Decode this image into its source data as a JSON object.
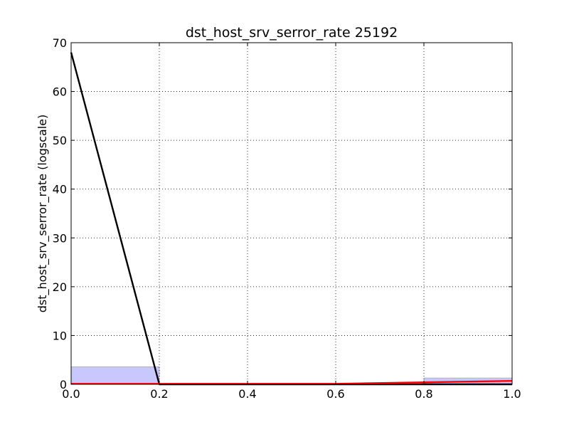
{
  "chart_data": {
    "type": "line",
    "title": "dst_host_srv_serror_rate 25192",
    "xlabel": "",
    "ylabel": "dst_host_srv_serror_rate (logscale)",
    "xlim": [
      0.0,
      1.0
    ],
    "ylim": [
      0,
      70
    ],
    "grid": true,
    "x_ticks": [
      0.0,
      0.2,
      0.4,
      0.6,
      0.8,
      1.0
    ],
    "x_tick_labels": [
      "0.0",
      "0.2",
      "0.4",
      "0.6",
      "0.8",
      "1.0"
    ],
    "y_ticks": [
      0,
      10,
      20,
      30,
      40,
      50,
      60,
      70
    ],
    "y_tick_labels": [
      "0",
      "10",
      "20",
      "30",
      "40",
      "50",
      "60",
      "70"
    ],
    "histogram": {
      "bins": [
        {
          "x0": 0.0,
          "x1": 0.2,
          "value": 3.6
        },
        {
          "x0": 0.2,
          "x1": 0.4,
          "value": 0.1
        },
        {
          "x0": 0.4,
          "x1": 0.6,
          "value": 0.1
        },
        {
          "x0": 0.6,
          "x1": 0.8,
          "value": 0.1
        },
        {
          "x0": 0.8,
          "x1": 1.0,
          "value": 1.3
        }
      ],
      "color": "#c8c8ff"
    },
    "series": [
      {
        "color": "#000000",
        "points": [
          [
            0.0,
            68.0
          ],
          [
            0.2,
            0.0
          ],
          [
            0.4,
            0.0
          ],
          [
            0.6,
            0.0
          ],
          [
            0.8,
            0.0
          ],
          [
            1.0,
            0.0
          ]
        ]
      },
      {
        "color": "#ff0000",
        "points": [
          [
            0.0,
            0.1
          ],
          [
            0.2,
            0.1
          ],
          [
            0.4,
            0.1
          ],
          [
            0.6,
            0.1
          ],
          [
            0.8,
            0.4
          ],
          [
            1.0,
            0.7
          ]
        ]
      }
    ]
  }
}
